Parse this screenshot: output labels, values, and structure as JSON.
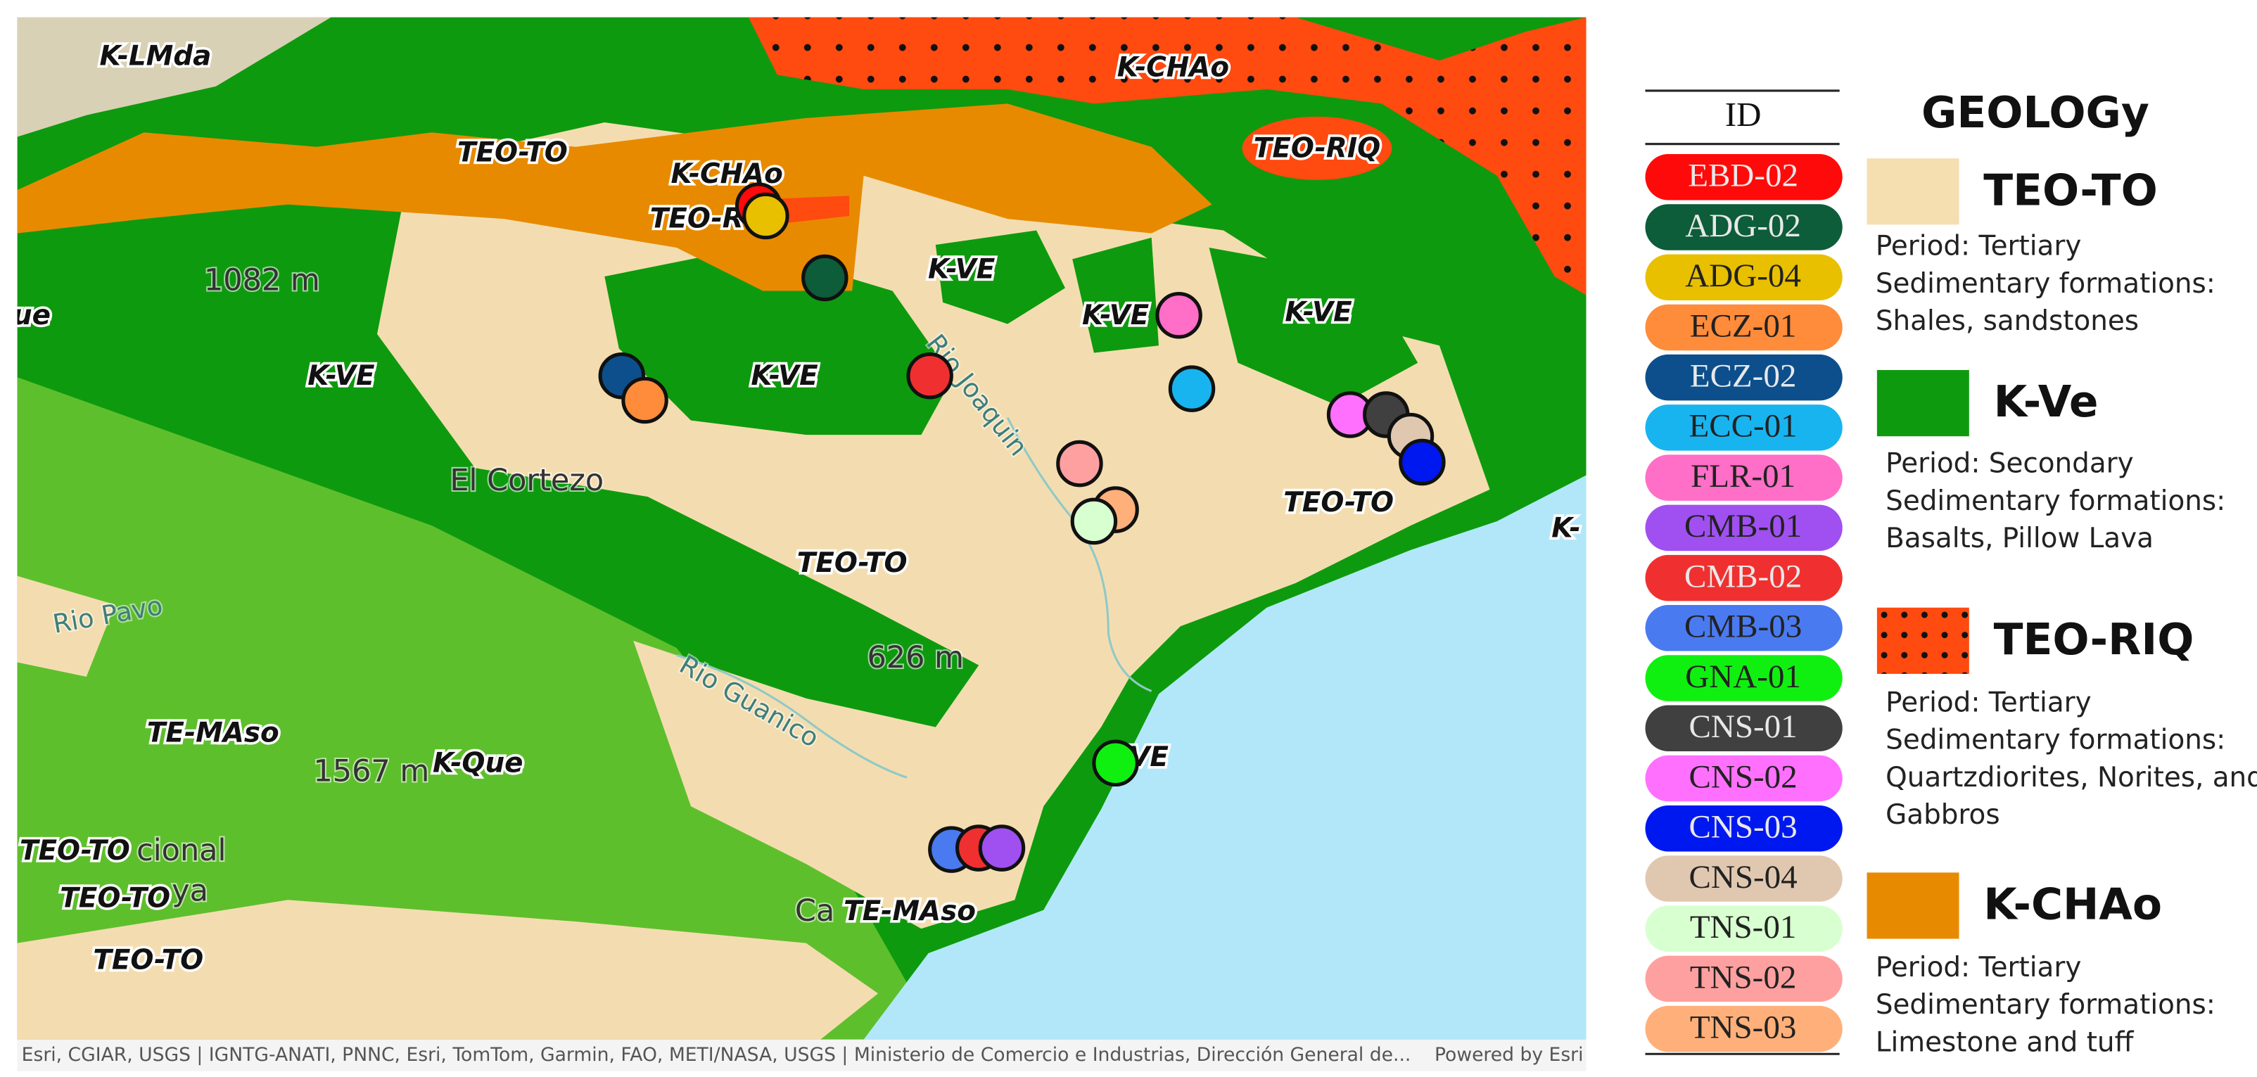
{
  "map": {
    "labels": [
      "K-LMda",
      "K-CHAo",
      "TEO-TO",
      "K-CHAo",
      "TEO-RIQ",
      "TEO-R",
      "1082 m",
      "K-VE",
      "K-VE",
      "K-VE",
      "ue",
      "K-VE",
      "K-VE",
      "Rio Joaquin",
      "El Cortezo",
      "TEO-TO",
      "K-",
      "TEO-TO",
      "Rio Pavo",
      "626 m",
      "Rio Guanico",
      "TE-MAso",
      "1567 m",
      "K-Que",
      "VE",
      "TEO-TO",
      "cional",
      "TEO-TO",
      "ya",
      "TEO-TO",
      "Ca",
      "TE-MAso"
    ],
    "attribution": "Esri, CGIAR, USGS | IGNTG-ANATI, PNNC, Esri, TomTom, Garmin, FAO, METI/NASA, USGS | Ministerio de Comercio e Industrias, Dirección General de...",
    "powered_by": "Powered by Esri"
  },
  "legend": {
    "header": "ID",
    "ids": [
      {
        "label": "EBD-02",
        "color": "#ff0a0a"
      },
      {
        "label": "ADG-02",
        "color": "#0d5c3a"
      },
      {
        "label": "ADG-04",
        "color": "#e8c000"
      },
      {
        "label": "ECZ-01",
        "color": "#ff8c3a"
      },
      {
        "label": "ECZ-02",
        "color": "#0c4f8c"
      },
      {
        "label": "ECC-01",
        "color": "#18b4f0"
      },
      {
        "label": "FLR-01",
        "color": "#ff6ec7"
      },
      {
        "label": "CMB-01",
        "color": "#a050f0"
      },
      {
        "label": "CMB-02",
        "color": "#f03030"
      },
      {
        "label": "CMB-03",
        "color": "#4a7af0"
      },
      {
        "label": "GNA-01",
        "color": "#10f010"
      },
      {
        "label": "CNS-01",
        "color": "#404040"
      },
      {
        "label": "CNS-02",
        "color": "#ff70ff"
      },
      {
        "label": "CNS-03",
        "color": "#0018f0"
      },
      {
        "label": "CNS-04",
        "color": "#e0c8b0"
      },
      {
        "label": "TNS-01",
        "color": "#d8ffd0"
      },
      {
        "label": "TNS-02",
        "color": "#ffa0a0"
      },
      {
        "label": "TNS-03",
        "color": "#ffb07a"
      }
    ]
  },
  "geology": {
    "title": "GEOLOGy",
    "units": [
      {
        "name": "TEO-TO",
        "color": "#f5deb0",
        "dotted": false,
        "lines": [
          "Period: Tertiary",
          "Sedimentary formations:",
          "Shales, sandstones"
        ]
      },
      {
        "name": "K-Ve",
        "color": "#0e9a0e",
        "dotted": false,
        "lines": [
          "Period: Secondary",
          "Sedimentary formations:",
          "Basalts, Pillow Lava"
        ]
      },
      {
        "name": "TEO-RIQ",
        "color": "#ff4a10",
        "dotted": true,
        "lines": [
          "Period: Tertiary",
          "Sedimentary formations:",
          "Quartzdiorites, Norites, and",
          "Gabbros"
        ]
      },
      {
        "name": "K-CHAo",
        "color": "#e88a00",
        "dotted": false,
        "lines": [
          "Period: Tertiary",
          "Sedimentary formations:",
          "Limestone and tuff"
        ]
      }
    ]
  }
}
